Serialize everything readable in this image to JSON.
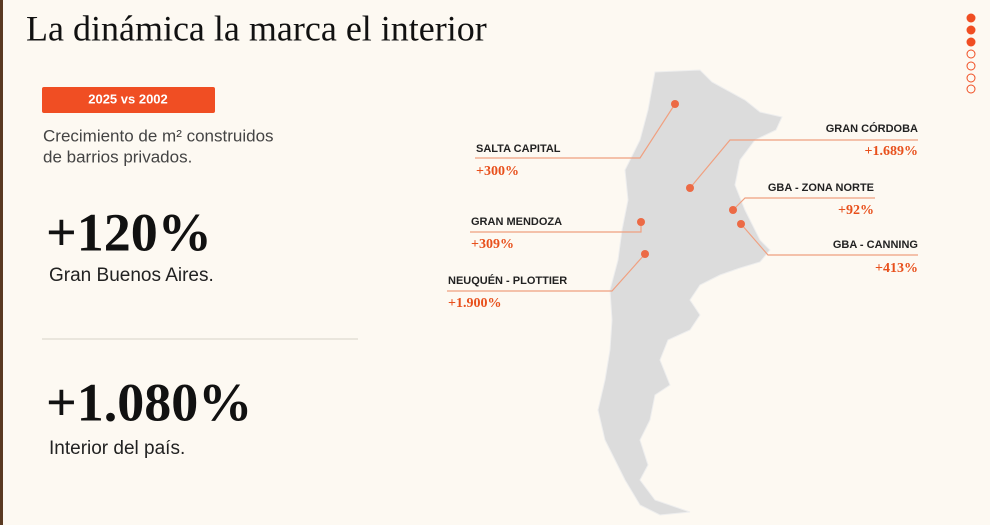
{
  "header": {
    "title": "La dinámica la marca el interior"
  },
  "badge": "2025 vs 2002",
  "subtitle": [
    "Crecimiento de m² construidos",
    "de barrios privados."
  ],
  "stats": [
    {
      "value": "+120%",
      "label": "Gran Buenos Aires."
    },
    {
      "value": "+1.080%",
      "label": "Interior del país."
    }
  ],
  "map": {
    "locations": [
      {
        "name": "SALTA CAPITAL",
        "value": "+300%"
      },
      {
        "name": "GRAN CÓRDOBA",
        "value": "+1.689%"
      },
      {
        "name": "GBA - ZONA NORTE",
        "value": "+92%"
      },
      {
        "name": "GRAN MENDOZA",
        "value": "+309%"
      },
      {
        "name": "GBA - CANNING",
        "value": "+413%"
      },
      {
        "name": "NEUQUÉN - PLOTTIER",
        "value": "+1.900%"
      }
    ]
  }
}
